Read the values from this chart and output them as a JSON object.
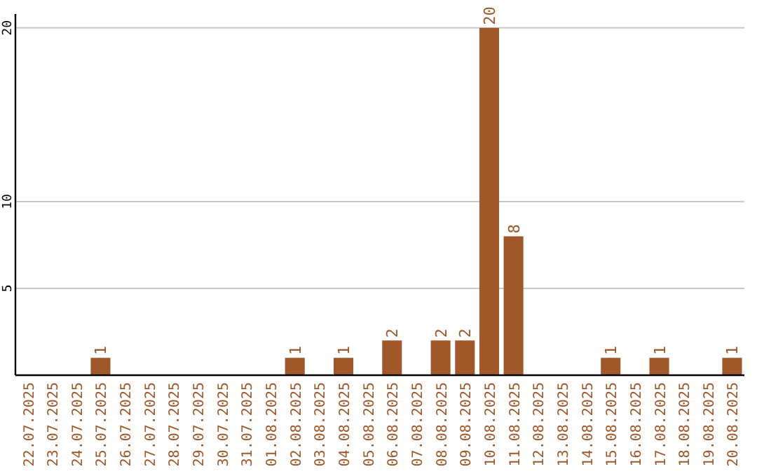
{
  "chart_data": {
    "type": "bar",
    "categories": [
      "22.07.2025",
      "23.07.2025",
      "24.07.2025",
      "25.07.2025",
      "26.07.2025",
      "27.07.2025",
      "28.07.2025",
      "29.07.2025",
      "30.07.2025",
      "31.07.2025",
      "01.08.2025",
      "02.08.2025",
      "03.08.2025",
      "04.08.2025",
      "05.08.2025",
      "06.08.2025",
      "07.08.2025",
      "08.08.2025",
      "09.08.2025",
      "10.08.2025",
      "11.08.2025",
      "12.08.2025",
      "13.08.2025",
      "14.08.2025",
      "15.08.2025",
      "16.08.2025",
      "17.08.2025",
      "18.08.2025",
      "19.08.2025",
      "20.08.2025"
    ],
    "values": [
      0,
      0,
      0,
      1,
      0,
      0,
      0,
      0,
      0,
      0,
      0,
      1,
      0,
      1,
      0,
      2,
      0,
      2,
      2,
      20,
      8,
      0,
      0,
      0,
      1,
      0,
      1,
      0,
      0,
      1
    ],
    "value_labels": [
      null,
      null,
      null,
      "1",
      null,
      null,
      null,
      null,
      null,
      null,
      null,
      "1",
      null,
      "1",
      null,
      "2",
      null,
      "2",
      "2",
      "20",
      "8",
      null,
      null,
      null,
      "1",
      null,
      "1",
      null,
      null,
      "1"
    ],
    "color": "#a0582a",
    "ylim": [
      0,
      20.8
    ],
    "yticks": [
      5,
      10,
      20
    ],
    "grid": "y"
  }
}
